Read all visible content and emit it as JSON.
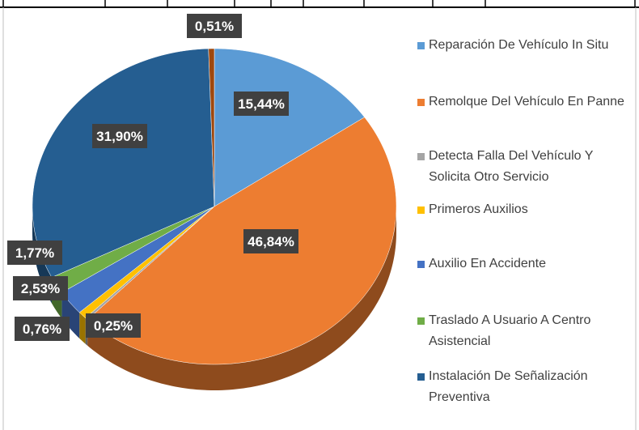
{
  "chart_data": {
    "type": "pie",
    "categories": [
      "Reparación De Vehículo In Situ",
      "Remolque Del Vehículo En Panne",
      "Detecta Falla Del Vehículo Y Solicita Otro Servicio",
      "Primeros Auxilios",
      "Auxilio En Accidente",
      "Traslado A Usuario A Centro Asistencial",
      "Instalación De Señalización Preventiva",
      null
    ],
    "values": [
      15.44,
      46.84,
      0.25,
      0.76,
      2.53,
      1.77,
      31.9,
      0.51
    ],
    "value_labels": [
      "15,44%",
      "46,84%",
      "0,25%",
      "0,76%",
      "2,53%",
      "1,77%",
      "31,90%",
      "0,51%"
    ],
    "colors": [
      "#5b9bd5",
      "#ed7d31",
      "#a5a5a5",
      "#ffc000",
      "#4472c4",
      "#70ad47",
      "#255e91",
      "#9e480e"
    ],
    "legend": "right"
  }
}
